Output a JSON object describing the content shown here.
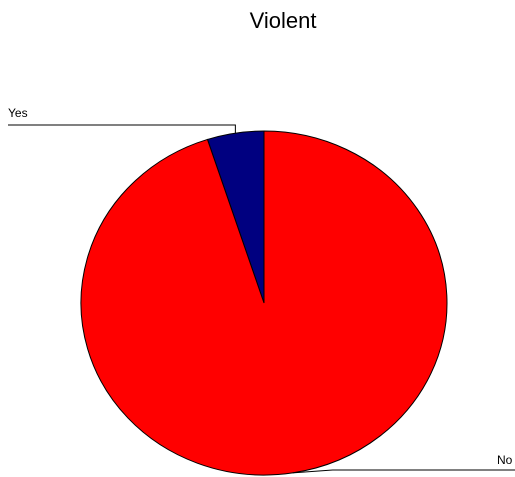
{
  "chart_data": {
    "type": "pie",
    "title": "Violent",
    "categories": [
      "Yes",
      "No"
    ],
    "values": [
      5,
      95
    ],
    "colors": [
      "#000080",
      "#ff0000"
    ]
  }
}
